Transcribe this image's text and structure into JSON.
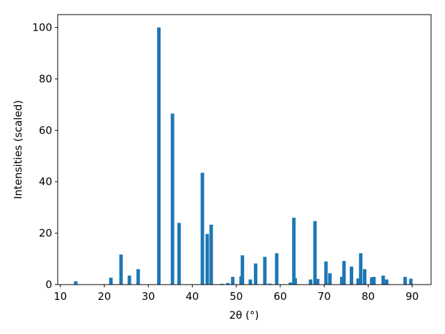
{
  "chart_data": {
    "type": "bar",
    "xlabel": "2θ (°)",
    "ylabel": "Intensities (scaled)",
    "x": [
      13.5,
      21.5,
      23.8,
      25.7,
      27.7,
      32.4,
      35.5,
      37.0,
      42.3,
      43.4,
      44.3,
      46.8,
      48.1,
      49.2,
      51.1,
      51.4,
      53.2,
      54.4,
      56.5,
      57.6,
      59.2,
      62.3,
      63.1,
      63.4,
      66.9,
      67.9,
      68.5,
      70.4,
      71.3,
      74.0,
      74.5,
      76.2,
      77.7,
      78.3,
      79.2,
      80.8,
      81.3,
      83.4,
      84.2,
      88.4,
      89.7
    ],
    "values": [
      1.3,
      2.7,
      11.7,
      3.5,
      6,
      100,
      66.5,
      24,
      43.5,
      19.7,
      23.3,
      0.3,
      0.6,
      3,
      3.2,
      11.4,
      2,
      8.2,
      10.8,
      0.4,
      12.2,
      0.8,
      26,
      2.5,
      2,
      24.7,
      2.2,
      9,
      4.4,
      3,
      9.2,
      7,
      2.4,
      12.2,
      6,
      2.8,
      3,
      3.5,
      2,
      3,
      2.3
    ],
    "color": "#1f77b4",
    "xlim": [
      9.4,
      94.3
    ],
    "ylim": [
      0,
      105
    ],
    "xticks": [
      10,
      20,
      30,
      40,
      50,
      60,
      70,
      80,
      90
    ],
    "yticks": [
      0,
      20,
      40,
      60,
      80,
      100
    ]
  }
}
